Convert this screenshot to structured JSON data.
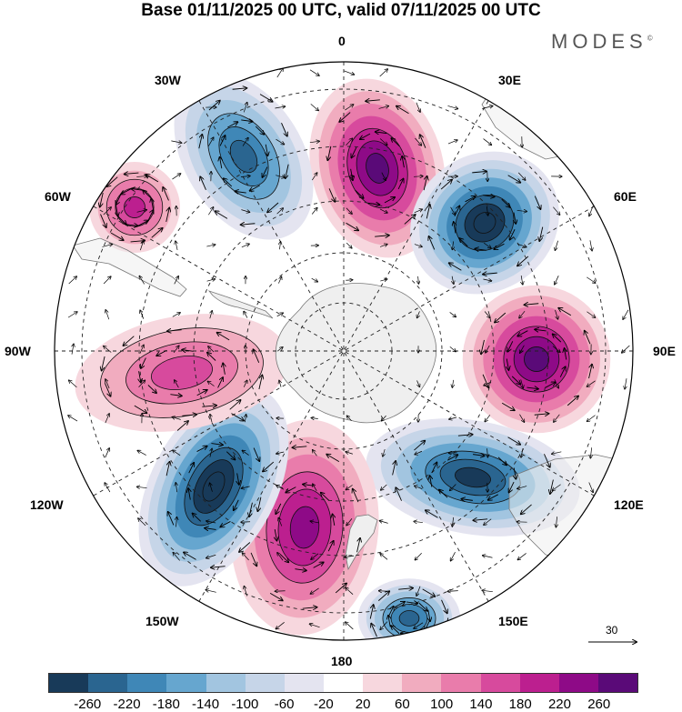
{
  "header": {
    "title": "Base 01/11/2025 00 UTC, valid 07/11/2025 00 UTC",
    "brand": "MODES",
    "brand_mark": "©"
  },
  "map": {
    "projection": "south polar stereographic",
    "longitude_labels": {
      "top": "0",
      "bottom": "180",
      "left": "90W",
      "right": "90E",
      "w30": "30W",
      "w60": "60W",
      "w120": "120W",
      "w150": "150W",
      "e30": "30E",
      "e60": "60E",
      "e120": "120E",
      "e150": "150E"
    },
    "vector_scale": "30",
    "anomalies": [
      {
        "name": "positive-anomaly-0E",
        "value": 220
      },
      {
        "name": "negative-anomaly-30W",
        "value": -180
      },
      {
        "name": "positive-anomaly-55W",
        "value": 140
      },
      {
        "name": "negative-anomaly-50E",
        "value": -260
      },
      {
        "name": "positive-anomaly-90E",
        "value": 220
      },
      {
        "name": "negative-anomaly-125E",
        "value": -220
      },
      {
        "name": "negative-anomaly-155E",
        "value": -180
      },
      {
        "name": "positive-anomaly-170W",
        "value": 180
      },
      {
        "name": "negative-anomaly-140W",
        "value": -260
      },
      {
        "name": "positive-anomaly-100W",
        "value": 100
      }
    ]
  },
  "colorbar": {
    "colors": [
      "#183a59",
      "#2a6590",
      "#3f87b7",
      "#66a6cf",
      "#a2c5e0",
      "#c6d5e8",
      "#e4e4f0",
      "#ffffff",
      "#f7d7de",
      "#f1acbf",
      "#e97cab",
      "#d74a9d",
      "#bc1f8f",
      "#8e0a87",
      "#5a0a78"
    ],
    "ticks": [
      "-260",
      "-220",
      "-180",
      "-140",
      "-100",
      "-60",
      "-20",
      "20",
      "60",
      "100",
      "140",
      "180",
      "220",
      "260"
    ]
  }
}
